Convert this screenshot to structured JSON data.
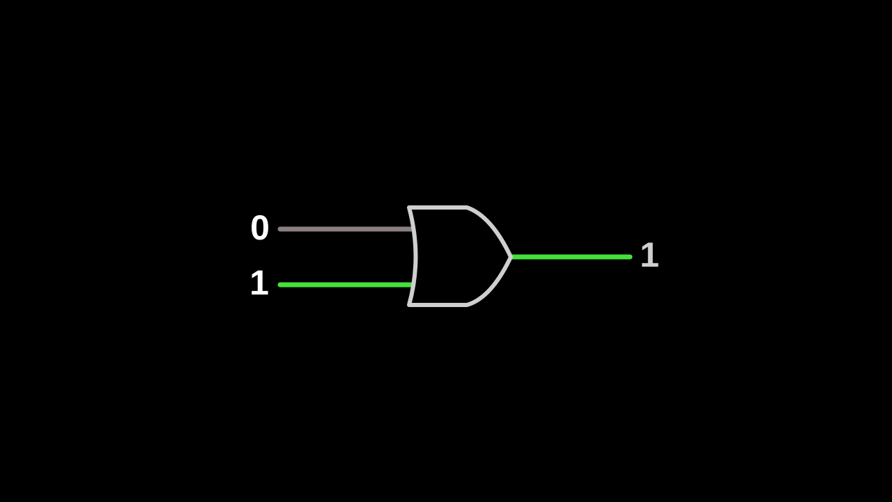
{
  "colors": {
    "background": "#000000",
    "wire_low": "#8a7e7e",
    "wire_high": "#45e03a",
    "gate_outline": "#cfcfcf",
    "input_label": "#ffffff",
    "output_label": "#cfcfcf"
  },
  "gate": {
    "type": "OR"
  },
  "inputs": [
    {
      "label": "0",
      "state": "low"
    },
    {
      "label": "1",
      "state": "high"
    }
  ],
  "output": {
    "label": "1",
    "state": "high"
  }
}
